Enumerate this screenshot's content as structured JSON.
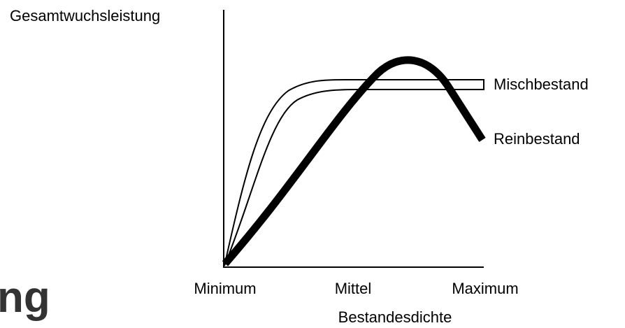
{
  "y_axis_label": "Gesamtwuchsleistung",
  "x_axis_label": "Bestandesdichte",
  "x_labels": [
    "Minimum",
    "Mittel",
    "Maximum"
  ],
  "curve_labels": [
    "Mischbestand",
    "Reinbestand"
  ],
  "fragment": "ng"
}
